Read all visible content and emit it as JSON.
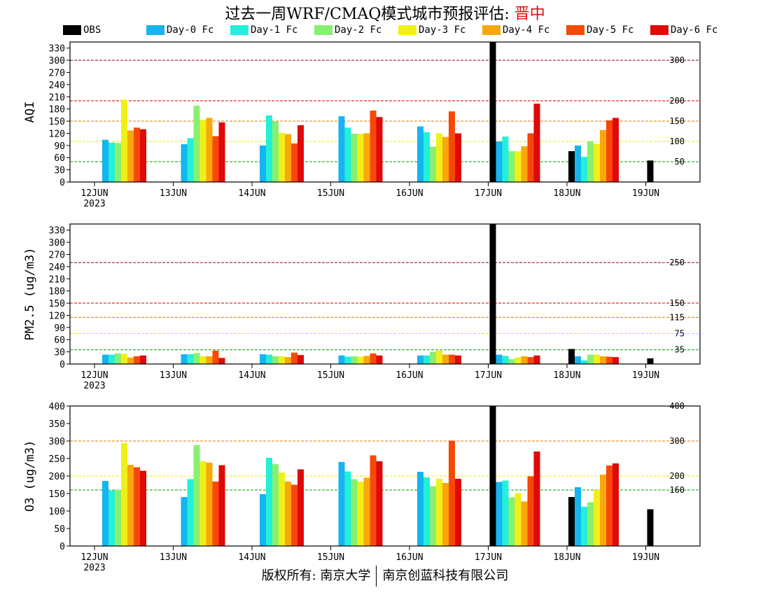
{
  "page": {
    "title_prefix": "过去一周WRF/CMAQ模式城市预报评估: ",
    "title_place": "晋中",
    "footer_left": "版权所有: 南京大学",
    "footer_right": "南京创蓝科技有限公司"
  },
  "legend": [
    {
      "name": "OBS",
      "color": "#000000"
    },
    {
      "name": "Day-0 Fc",
      "color": "#16b4f0"
    },
    {
      "name": "Day-1 Fc",
      "color": "#22f0d8"
    },
    {
      "name": "Day-2 Fc",
      "color": "#88f070"
    },
    {
      "name": "Day-3 Fc",
      "color": "#f0f018"
    },
    {
      "name": "Day-4 Fc",
      "color": "#f8a808"
    },
    {
      "name": "Day-5 Fc",
      "color": "#f84808"
    },
    {
      "name": "Day-6 Fc",
      "color": "#e00808"
    }
  ],
  "chart_data": [
    {
      "type": "bar",
      "ylabel": "AQI",
      "ylim": [
        0,
        345
      ],
      "yticks": [
        0,
        30,
        60,
        90,
        120,
        150,
        180,
        210,
        240,
        270,
        300,
        330
      ],
      "categories": [
        "12JUN",
        "13JUN",
        "14JUN",
        "15JUN",
        "16JUN",
        "17JUN",
        "18JUN",
        "19JUN"
      ],
      "year_label": "2023",
      "thresholds": [
        {
          "value": 50,
          "label": "50",
          "color": "#00a000"
        },
        {
          "value": 100,
          "label": "100",
          "color": "#e8e800"
        },
        {
          "value": 150,
          "label": "150",
          "color": "#e07800"
        },
        {
          "value": 200,
          "label": "200",
          "color": "#d00000"
        },
        {
          "value": 300,
          "label": "300",
          "color": "#900030"
        }
      ],
      "series": [
        {
          "name": "OBS",
          "values": [
            null,
            null,
            null,
            null,
            null,
            345,
            76,
            53
          ]
        },
        {
          "name": "Day-0 Fc",
          "values": [
            104,
            93,
            90,
            162,
            137,
            100,
            90,
            null
          ]
        },
        {
          "name": "Day-1 Fc",
          "values": [
            97,
            108,
            164,
            134,
            123,
            112,
            62,
            null
          ]
        },
        {
          "name": "Day-2 Fc",
          "values": [
            96,
            188,
            149,
            119,
            87,
            76,
            100,
            null
          ]
        },
        {
          "name": "Day-3 Fc",
          "values": [
            203,
            153,
            121,
            119,
            120,
            76,
            94,
            null
          ]
        },
        {
          "name": "Day-4 Fc",
          "values": [
            127,
            158,
            118,
            120,
            111,
            88,
            128,
            null
          ]
        },
        {
          "name": "Day-5 Fc",
          "values": [
            134,
            113,
            95,
            176,
            174,
            120,
            152,
            null
          ]
        },
        {
          "name": "Day-6 Fc",
          "values": [
            130,
            147,
            140,
            160,
            120,
            193,
            158,
            null
          ]
        }
      ]
    },
    {
      "type": "bar",
      "ylabel": "PM2.5 (ug/m3)",
      "ylim": [
        0,
        345
      ],
      "yticks": [
        0,
        30,
        60,
        90,
        120,
        150,
        180,
        210,
        240,
        270,
        300,
        330
      ],
      "categories": [
        "12JUN",
        "13JUN",
        "14JUN",
        "15JUN",
        "16JUN",
        "17JUN",
        "18JUN",
        "19JUN"
      ],
      "year_label": "2023",
      "thresholds": [
        {
          "value": 35,
          "label": "35",
          "color": "#00a000"
        },
        {
          "value": 75,
          "label": "75",
          "color": "#e8e800"
        },
        {
          "value": 115,
          "label": "115",
          "color": "#e07800"
        },
        {
          "value": 150,
          "label": "150",
          "color": "#d00000"
        },
        {
          "value": 250,
          "label": "250",
          "color": "#900030"
        }
      ],
      "series": [
        {
          "name": "OBS",
          "values": [
            null,
            null,
            null,
            null,
            null,
            345,
            37,
            14
          ]
        },
        {
          "name": "Day-0 Fc",
          "values": [
            23,
            24,
            24,
            21,
            21,
            23,
            19,
            null
          ]
        },
        {
          "name": "Day-1 Fc",
          "values": [
            23,
            24,
            23,
            18,
            21,
            20,
            9,
            null
          ]
        },
        {
          "name": "Day-2 Fc",
          "values": [
            26,
            27,
            19,
            19,
            30,
            12,
            23,
            null
          ]
        },
        {
          "name": "Day-3 Fc",
          "values": [
            25,
            19,
            19,
            18,
            33,
            16,
            23,
            null
          ]
        },
        {
          "name": "Day-4 Fc",
          "values": [
            16,
            19,
            17,
            20,
            23,
            19,
            19,
            null
          ]
        },
        {
          "name": "Day-5 Fc",
          "values": [
            19,
            33,
            28,
            26,
            23,
            17,
            18,
            null
          ]
        },
        {
          "name": "Day-6 Fc",
          "values": [
            21,
            15,
            22,
            21,
            21,
            21,
            17,
            null
          ]
        }
      ]
    },
    {
      "type": "bar",
      "ylabel": "O3 (ug/m3)",
      "ylim": [
        0,
        400
      ],
      "yticks": [
        0,
        50,
        100,
        150,
        200,
        250,
        300,
        350,
        400
      ],
      "categories": [
        "12JUN",
        "13JUN",
        "14JUN",
        "15JUN",
        "16JUN",
        "17JUN",
        "18JUN",
        "19JUN"
      ],
      "year_label": "2023",
      "thresholds": [
        {
          "value": 160,
          "label": "160",
          "color": "#00a000"
        },
        {
          "value": 200,
          "label": "200",
          "color": "#e8e800"
        },
        {
          "value": 300,
          "label": "300",
          "color": "#e07800"
        },
        {
          "value": 400,
          "label": "400",
          "color": "#d00000"
        }
      ],
      "series": [
        {
          "name": "OBS",
          "values": [
            null,
            null,
            null,
            null,
            null,
            400,
            140,
            105
          ]
        },
        {
          "name": "Day-0 Fc",
          "values": [
            186,
            140,
            148,
            240,
            212,
            183,
            168,
            null
          ]
        },
        {
          "name": "Day-1 Fc",
          "values": [
            158,
            191,
            252,
            213,
            196,
            187,
            112,
            null
          ]
        },
        {
          "name": "Day-2 Fc",
          "values": [
            161,
            288,
            234,
            191,
            171,
            139,
            125,
            null
          ]
        },
        {
          "name": "Day-3 Fc",
          "values": [
            294,
            242,
            210,
            184,
            192,
            151,
            160,
            null
          ]
        },
        {
          "name": "Day-4 Fc",
          "values": [
            232,
            238,
            184,
            195,
            180,
            127,
            204,
            null
          ]
        },
        {
          "name": "Day-5 Fc",
          "values": [
            225,
            184,
            175,
            259,
            301,
            199,
            230,
            null
          ]
        },
        {
          "name": "Day-6 Fc",
          "values": [
            215,
            231,
            219,
            242,
            192,
            270,
            236,
            null
          ]
        }
      ]
    }
  ]
}
